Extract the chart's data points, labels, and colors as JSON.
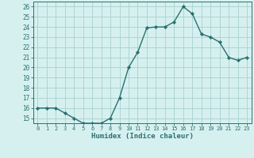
{
  "x": [
    0,
    1,
    2,
    3,
    4,
    5,
    6,
    7,
    8,
    9,
    10,
    11,
    12,
    13,
    14,
    15,
    16,
    17,
    18,
    19,
    20,
    21,
    22,
    23
  ],
  "y": [
    16,
    16,
    16,
    15.5,
    15,
    14.5,
    14.5,
    14.5,
    15,
    17,
    20,
    21.5,
    23.9,
    24,
    24,
    24.5,
    26,
    25.3,
    23.3,
    23,
    22.5,
    21,
    20.7,
    21
  ],
  "line_color": "#2a7070",
  "marker_color": "#2a7070",
  "bg_color": "#d6f0f0",
  "grid_color": "#aed4d4",
  "xlabel": "Humidex (Indice chaleur)",
  "ylim": [
    14.5,
    26.5
  ],
  "xlim": [
    -0.5,
    23.5
  ],
  "yticks": [
    15,
    16,
    17,
    18,
    19,
    20,
    21,
    22,
    23,
    24,
    25,
    26
  ],
  "xtick_labels": [
    "0",
    "1",
    "2",
    "3",
    "4",
    "5",
    "6",
    "7",
    "8",
    "9",
    "10",
    "11",
    "12",
    "13",
    "14",
    "15",
    "16",
    "17",
    "18",
    "19",
    "20",
    "21",
    "22",
    "23"
  ],
  "axis_color": "#2a7070",
  "tick_color": "#2a7070",
  "font_color": "#2a7070"
}
